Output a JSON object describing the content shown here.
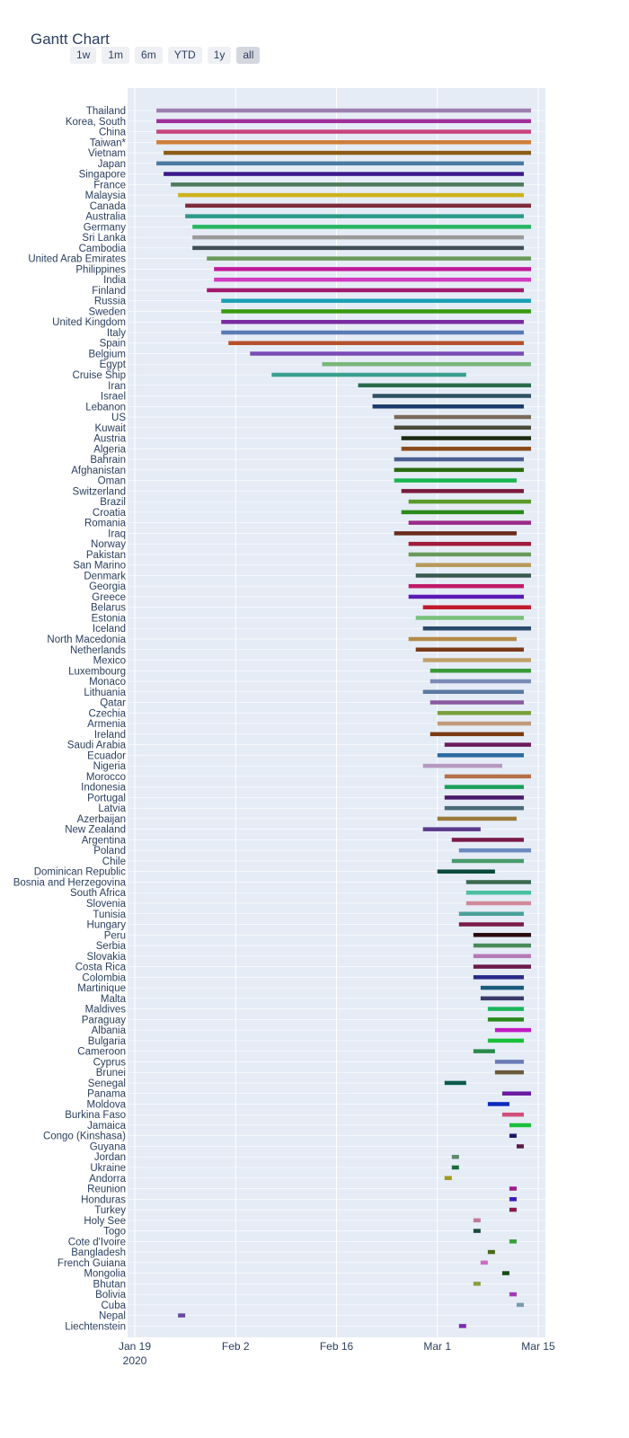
{
  "title": "Gantt Chart",
  "range_buttons": [
    "1w",
    "1m",
    "6m",
    "YTD",
    "1y",
    "all"
  ],
  "active_range": "all",
  "chart_data": {
    "type": "gantt",
    "x_axis": {
      "type": "date",
      "range": [
        "2020-01-18",
        "2020-03-16"
      ],
      "ticks": [
        {
          "date": "2020-01-19",
          "label": "Jan 19",
          "sublabel": "2020"
        },
        {
          "date": "2020-02-02",
          "label": "Feb 2"
        },
        {
          "date": "2020-02-16",
          "label": "Feb 16"
        },
        {
          "date": "2020-03-01",
          "label": "Mar 1"
        },
        {
          "date": "2020-03-15",
          "label": "Mar 15"
        }
      ]
    },
    "grid": true,
    "bars": [
      {
        "name": "Thailand",
        "start": "2020-01-22",
        "end": "2020-03-14",
        "color": "#9c7fb0"
      },
      {
        "name": "Korea, South",
        "start": "2020-01-22",
        "end": "2020-03-14",
        "color": "#a0309a"
      },
      {
        "name": "China",
        "start": "2020-01-22",
        "end": "2020-03-14",
        "color": "#c6457d"
      },
      {
        "name": "Taiwan*",
        "start": "2020-01-22",
        "end": "2020-03-14",
        "color": "#cf7f3a"
      },
      {
        "name": "Vietnam",
        "start": "2020-01-23",
        "end": "2020-03-14",
        "color": "#8a5c16"
      },
      {
        "name": "Japan",
        "start": "2020-01-22",
        "end": "2020-03-13",
        "color": "#4a7aa0"
      },
      {
        "name": "Singapore",
        "start": "2020-01-23",
        "end": "2020-03-13",
        "color": "#3b1a8c"
      },
      {
        "name": "France",
        "start": "2020-01-24",
        "end": "2020-03-13",
        "color": "#4f7a5d"
      },
      {
        "name": "Malaysia",
        "start": "2020-01-25",
        "end": "2020-03-13",
        "color": "#cdb31c"
      },
      {
        "name": "Canada",
        "start": "2020-01-26",
        "end": "2020-03-14",
        "color": "#7d2b3a"
      },
      {
        "name": "Australia",
        "start": "2020-01-26",
        "end": "2020-03-13",
        "color": "#2a9a88"
      },
      {
        "name": "Germany",
        "start": "2020-01-27",
        "end": "2020-03-14",
        "color": "#27b560"
      },
      {
        "name": "Sri Lanka",
        "start": "2020-01-27",
        "end": "2020-03-13",
        "color": "#9a9a9a"
      },
      {
        "name": "Cambodia",
        "start": "2020-01-27",
        "end": "2020-03-13",
        "color": "#3f4f55"
      },
      {
        "name": "United Arab Emirates",
        "start": "2020-01-29",
        "end": "2020-03-14",
        "color": "#6a9a5a"
      },
      {
        "name": "Philippines",
        "start": "2020-01-30",
        "end": "2020-03-14",
        "color": "#c01a9a"
      },
      {
        "name": "India",
        "start": "2020-01-30",
        "end": "2020-03-14",
        "color": "#d23abf"
      },
      {
        "name": "Finland",
        "start": "2020-01-29",
        "end": "2020-03-13",
        "color": "#a01a6e"
      },
      {
        "name": "Russia",
        "start": "2020-01-31",
        "end": "2020-03-14",
        "color": "#1aa0b5"
      },
      {
        "name": "Sweden",
        "start": "2020-01-31",
        "end": "2020-03-14",
        "color": "#3a9a10"
      },
      {
        "name": "United Kingdom",
        "start": "2020-01-31",
        "end": "2020-03-13",
        "color": "#7a2aa0"
      },
      {
        "name": "Italy",
        "start": "2020-01-31",
        "end": "2020-03-13",
        "color": "#5a7ab5"
      },
      {
        "name": "Spain",
        "start": "2020-02-01",
        "end": "2020-03-13",
        "color": "#b5502a"
      },
      {
        "name": "Belgium",
        "start": "2020-02-04",
        "end": "2020-03-13",
        "color": "#7a4ab5"
      },
      {
        "name": "Egypt",
        "start": "2020-02-14",
        "end": "2020-03-14",
        "color": "#7ab57a"
      },
      {
        "name": "Cruise Ship",
        "start": "2020-02-07",
        "end": "2020-03-05",
        "color": "#3aa090"
      },
      {
        "name": "Iran",
        "start": "2020-02-19",
        "end": "2020-03-14",
        "color": "#2a6a4a"
      },
      {
        "name": "Israel",
        "start": "2020-02-21",
        "end": "2020-03-14",
        "color": "#2f5060"
      },
      {
        "name": "Lebanon",
        "start": "2020-02-21",
        "end": "2020-03-13",
        "color": "#1a3a6a"
      },
      {
        "name": "US",
        "start": "2020-02-24",
        "end": "2020-03-14",
        "color": "#7a6a5a"
      },
      {
        "name": "Kuwait",
        "start": "2020-02-24",
        "end": "2020-03-14",
        "color": "#4a4a3a"
      },
      {
        "name": "Austria",
        "start": "2020-02-25",
        "end": "2020-03-14",
        "color": "#1a2a10"
      },
      {
        "name": "Algeria",
        "start": "2020-02-25",
        "end": "2020-03-14",
        "color": "#8a4a1a"
      },
      {
        "name": "Bahrain",
        "start": "2020-02-24",
        "end": "2020-03-13",
        "color": "#4a6090"
      },
      {
        "name": "Afghanistan",
        "start": "2020-02-24",
        "end": "2020-03-13",
        "color": "#2a6a10"
      },
      {
        "name": "Oman",
        "start": "2020-02-24",
        "end": "2020-03-12",
        "color": "#1ab550"
      },
      {
        "name": "Switzerland",
        "start": "2020-02-25",
        "end": "2020-03-13",
        "color": "#7a1a3a"
      },
      {
        "name": "Brazil",
        "start": "2020-02-26",
        "end": "2020-03-14",
        "color": "#5a9a2a"
      },
      {
        "name": "Croatia",
        "start": "2020-02-25",
        "end": "2020-03-13",
        "color": "#2a8a1a"
      },
      {
        "name": "Romania",
        "start": "2020-02-26",
        "end": "2020-03-14",
        "color": "#9a2a8a"
      },
      {
        "name": "Iraq",
        "start": "2020-02-24",
        "end": "2020-03-12",
        "color": "#6a2a1a"
      },
      {
        "name": "Norway",
        "start": "2020-02-26",
        "end": "2020-03-14",
        "color": "#a01a3a"
      },
      {
        "name": "Pakistan",
        "start": "2020-02-26",
        "end": "2020-03-14",
        "color": "#6a9a5a"
      },
      {
        "name": "San Marino",
        "start": "2020-02-27",
        "end": "2020-03-14",
        "color": "#b59a5a"
      },
      {
        "name": "Denmark",
        "start": "2020-02-27",
        "end": "2020-03-14",
        "color": "#3a5a50"
      },
      {
        "name": "Georgia",
        "start": "2020-02-26",
        "end": "2020-03-13",
        "color": "#c01a6a"
      },
      {
        "name": "Greece",
        "start": "2020-02-26",
        "end": "2020-03-13",
        "color": "#5a1ab5"
      },
      {
        "name": "Belarus",
        "start": "2020-02-28",
        "end": "2020-03-14",
        "color": "#c01a2a"
      },
      {
        "name": "Estonia",
        "start": "2020-02-27",
        "end": "2020-03-13",
        "color": "#7ac07a"
      },
      {
        "name": "Iceland",
        "start": "2020-02-28",
        "end": "2020-03-14",
        "color": "#2a4a6a"
      },
      {
        "name": "North Macedonia",
        "start": "2020-02-26",
        "end": "2020-03-12",
        "color": "#b58a4a"
      },
      {
        "name": "Netherlands",
        "start": "2020-02-27",
        "end": "2020-03-13",
        "color": "#7a3a1a"
      },
      {
        "name": "Mexico",
        "start": "2020-02-28",
        "end": "2020-03-14",
        "color": "#c0a06a"
      },
      {
        "name": "Luxembourg",
        "start": "2020-02-29",
        "end": "2020-03-14",
        "color": "#3a9a3a"
      },
      {
        "name": "Monaco",
        "start": "2020-02-29",
        "end": "2020-03-14",
        "color": "#7a8ab5"
      },
      {
        "name": "Lithuania",
        "start": "2020-02-28",
        "end": "2020-03-13",
        "color": "#5a7aa0"
      },
      {
        "name": "Qatar",
        "start": "2020-02-29",
        "end": "2020-03-13",
        "color": "#8a5aa0"
      },
      {
        "name": "Czechia",
        "start": "2020-03-01",
        "end": "2020-03-14",
        "color": "#7aa03a"
      },
      {
        "name": "Armenia",
        "start": "2020-03-01",
        "end": "2020-03-14",
        "color": "#c09a7a"
      },
      {
        "name": "Ireland",
        "start": "2020-02-29",
        "end": "2020-03-13",
        "color": "#7a3a10"
      },
      {
        "name": "Saudi Arabia",
        "start": "2020-03-02",
        "end": "2020-03-14",
        "color": "#6a1a5a"
      },
      {
        "name": "Ecuador",
        "start": "2020-03-01",
        "end": "2020-03-13",
        "color": "#2a6aa0"
      },
      {
        "name": "Nigeria",
        "start": "2020-02-28",
        "end": "2020-03-10",
        "color": "#b59ac0"
      },
      {
        "name": "Morocco",
        "start": "2020-03-02",
        "end": "2020-03-14",
        "color": "#b5704a"
      },
      {
        "name": "Indonesia",
        "start": "2020-03-02",
        "end": "2020-03-13",
        "color": "#1aa05a"
      },
      {
        "name": "Portugal",
        "start": "2020-03-02",
        "end": "2020-03-13",
        "color": "#4a1a6a"
      },
      {
        "name": "Latvia",
        "start": "2020-03-02",
        "end": "2020-03-13",
        "color": "#4a6a7a"
      },
      {
        "name": "Azerbaijan",
        "start": "2020-03-01",
        "end": "2020-03-12",
        "color": "#9a7a3a"
      },
      {
        "name": "New Zealand",
        "start": "2020-02-28",
        "end": "2020-03-07",
        "color": "#5a3a8a"
      },
      {
        "name": "Argentina",
        "start": "2020-03-03",
        "end": "2020-03-13",
        "color": "#7a1a4a"
      },
      {
        "name": "Poland",
        "start": "2020-03-04",
        "end": "2020-03-14",
        "color": "#6a8ac0"
      },
      {
        "name": "Chile",
        "start": "2020-03-03",
        "end": "2020-03-13",
        "color": "#4a9a6a"
      },
      {
        "name": "Dominican Republic",
        "start": "2020-03-01",
        "end": "2020-03-09",
        "color": "#0a4a3a"
      },
      {
        "name": "Bosnia and Herzegovina",
        "start": "2020-03-05",
        "end": "2020-03-14",
        "color": "#3a6a50"
      },
      {
        "name": "South Africa",
        "start": "2020-03-05",
        "end": "2020-03-14",
        "color": "#4ac0a0"
      },
      {
        "name": "Slovenia",
        "start": "2020-03-05",
        "end": "2020-03-14",
        "color": "#d08a9a"
      },
      {
        "name": "Tunisia",
        "start": "2020-03-04",
        "end": "2020-03-13",
        "color": "#4aa09a"
      },
      {
        "name": "Hungary",
        "start": "2020-03-04",
        "end": "2020-03-13",
        "color": "#7a1a4a"
      },
      {
        "name": "Peru",
        "start": "2020-03-06",
        "end": "2020-03-14",
        "color": "#2a0a10"
      },
      {
        "name": "Serbia",
        "start": "2020-03-06",
        "end": "2020-03-14",
        "color": "#4a8a5a"
      },
      {
        "name": "Slovakia",
        "start": "2020-03-06",
        "end": "2020-03-14",
        "color": "#b57ab5"
      },
      {
        "name": "Costa Rica",
        "start": "2020-03-06",
        "end": "2020-03-14",
        "color": "#6a1a4a"
      },
      {
        "name": "Colombia",
        "start": "2020-03-06",
        "end": "2020-03-13",
        "color": "#2a2a8a"
      },
      {
        "name": "Martinique",
        "start": "2020-03-07",
        "end": "2020-03-13",
        "color": "#1a5a7a"
      },
      {
        "name": "Malta",
        "start": "2020-03-07",
        "end": "2020-03-13",
        "color": "#3a3a6a"
      },
      {
        "name": "Maldives",
        "start": "2020-03-08",
        "end": "2020-03-13",
        "color": "#1ab55a"
      },
      {
        "name": "Paraguay",
        "start": "2020-03-08",
        "end": "2020-03-13",
        "color": "#2a8a1a"
      },
      {
        "name": "Albania",
        "start": "2020-03-09",
        "end": "2020-03-14",
        "color": "#c01ac0"
      },
      {
        "name": "Bulgaria",
        "start": "2020-03-08",
        "end": "2020-03-13",
        "color": "#1ac03a"
      },
      {
        "name": "Cameroon",
        "start": "2020-03-06",
        "end": "2020-03-09",
        "color": "#2a8a4a"
      },
      {
        "name": "Cyprus",
        "start": "2020-03-09",
        "end": "2020-03-13",
        "color": "#6a7ab5"
      },
      {
        "name": "Brunei",
        "start": "2020-03-09",
        "end": "2020-03-13",
        "color": "#6a5a3a"
      },
      {
        "name": "Senegal",
        "start": "2020-03-02",
        "end": "2020-03-05",
        "color": "#0a5a4a"
      },
      {
        "name": "Panama",
        "start": "2020-03-10",
        "end": "2020-03-14",
        "color": "#6a1aa0"
      },
      {
        "name": "Moldova",
        "start": "2020-03-08",
        "end": "2020-03-11",
        "color": "#0a2ac0"
      },
      {
        "name": "Burkina Faso",
        "start": "2020-03-10",
        "end": "2020-03-13",
        "color": "#d0507a"
      },
      {
        "name": "Jamaica",
        "start": "2020-03-11",
        "end": "2020-03-14",
        "color": "#1ac03a"
      },
      {
        "name": "Congo (Kinshasa)",
        "start": "2020-03-11",
        "end": "2020-03-12",
        "color": "#1a1a6a"
      },
      {
        "name": "Guyana",
        "start": "2020-03-12",
        "end": "2020-03-13",
        "color": "#5a1a4a"
      },
      {
        "name": "Jordan",
        "start": "2020-03-03",
        "end": "2020-03-04",
        "color": "#5a8a6a"
      },
      {
        "name": "Ukraine",
        "start": "2020-03-03",
        "end": "2020-03-04",
        "color": "#1a6a3a"
      },
      {
        "name": "Andorra",
        "start": "2020-03-02",
        "end": "2020-03-03",
        "color": "#a09a1a"
      },
      {
        "name": "Reunion",
        "start": "2020-03-11",
        "end": "2020-03-12",
        "color": "#a01a8a"
      },
      {
        "name": "Honduras",
        "start": "2020-03-11",
        "end": "2020-03-12",
        "color": "#3a1ac0"
      },
      {
        "name": "Turkey",
        "start": "2020-03-11",
        "end": "2020-03-12",
        "color": "#8a1a4a"
      },
      {
        "name": "Holy See",
        "start": "2020-03-06",
        "end": "2020-03-07",
        "color": "#c07a9a"
      },
      {
        "name": "Togo",
        "start": "2020-03-06",
        "end": "2020-03-07",
        "color": "#1a4a3a"
      },
      {
        "name": "Cote d'Ivoire",
        "start": "2020-03-11",
        "end": "2020-03-12",
        "color": "#3aa03a"
      },
      {
        "name": "Bangladesh",
        "start": "2020-03-08",
        "end": "2020-03-09",
        "color": "#4a6a1a"
      },
      {
        "name": "French Guiana",
        "start": "2020-03-07",
        "end": "2020-03-08",
        "color": "#d06ac0"
      },
      {
        "name": "Mongolia",
        "start": "2020-03-10",
        "end": "2020-03-11",
        "color": "#1a4a1a"
      },
      {
        "name": "Bhutan",
        "start": "2020-03-06",
        "end": "2020-03-07",
        "color": "#8aa03a"
      },
      {
        "name": "Bolivia",
        "start": "2020-03-11",
        "end": "2020-03-12",
        "color": "#a03ab5"
      },
      {
        "name": "Cuba",
        "start": "2020-03-12",
        "end": "2020-03-13",
        "color": "#7a9ab0"
      },
      {
        "name": "Nepal",
        "start": "2020-01-25",
        "end": "2020-01-26",
        "color": "#6a4aa0"
      },
      {
        "name": "Liechtenstein",
        "start": "2020-03-04",
        "end": "2020-03-05",
        "color": "#7a2ab5"
      }
    ]
  }
}
